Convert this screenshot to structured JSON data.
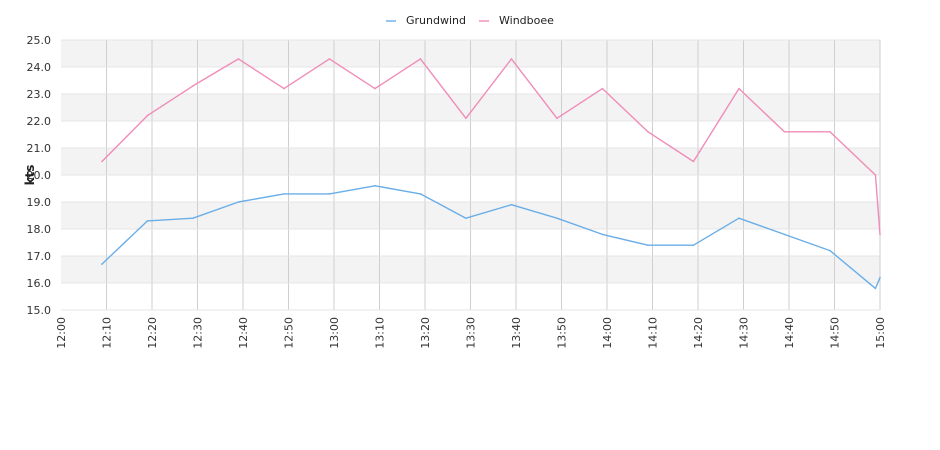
{
  "chart_data": {
    "type": "line",
    "ylabel": "kts",
    "ylim": [
      15.0,
      25.0
    ],
    "y_ticks": [
      "15.0",
      "16.0",
      "17.0",
      "18.0",
      "19.0",
      "20.0",
      "21.0",
      "22.0",
      "23.0",
      "24.0",
      "25.0"
    ],
    "x_ticks": [
      "12:00",
      "12:10",
      "12:20",
      "12:30",
      "12:40",
      "12:50",
      "13:00",
      "13:10",
      "13:20",
      "13:30",
      "13:40",
      "13:50",
      "14:00",
      "14:10",
      "14:20",
      "14:30",
      "14:40",
      "14:50",
      "15:00"
    ],
    "x_minutes_range": [
      0,
      180
    ],
    "grid": true,
    "legend_position": "top-center",
    "series": [
      {
        "name": "Grundwind",
        "color": "#6aaee8",
        "x": [
          "12:09",
          "12:19",
          "12:29",
          "12:39",
          "12:49",
          "12:59",
          "13:09",
          "13:19",
          "13:29",
          "13:39",
          "13:49",
          "13:59",
          "14:09",
          "14:19",
          "14:29",
          "14:39",
          "14:49",
          "14:59",
          "15:00"
        ],
        "values": [
          16.7,
          18.3,
          18.4,
          19.0,
          19.3,
          19.3,
          19.6,
          19.3,
          18.4,
          18.9,
          18.4,
          17.8,
          17.4,
          17.4,
          18.4,
          17.8,
          17.2,
          15.8,
          16.2
        ]
      },
      {
        "name": "Windboee",
        "color": "#f08cb8",
        "x": [
          "12:09",
          "12:19",
          "12:29",
          "12:39",
          "12:49",
          "12:59",
          "13:09",
          "13:19",
          "13:29",
          "13:39",
          "13:49",
          "13:59",
          "14:09",
          "14:19",
          "14:29",
          "14:39",
          "14:49",
          "14:59",
          "15:00"
        ],
        "values": [
          20.5,
          22.2,
          23.3,
          24.3,
          23.2,
          24.3,
          23.2,
          24.3,
          22.1,
          24.3,
          22.1,
          23.2,
          21.6,
          20.5,
          23.2,
          21.6,
          21.6,
          20.0,
          17.8
        ]
      }
    ]
  }
}
